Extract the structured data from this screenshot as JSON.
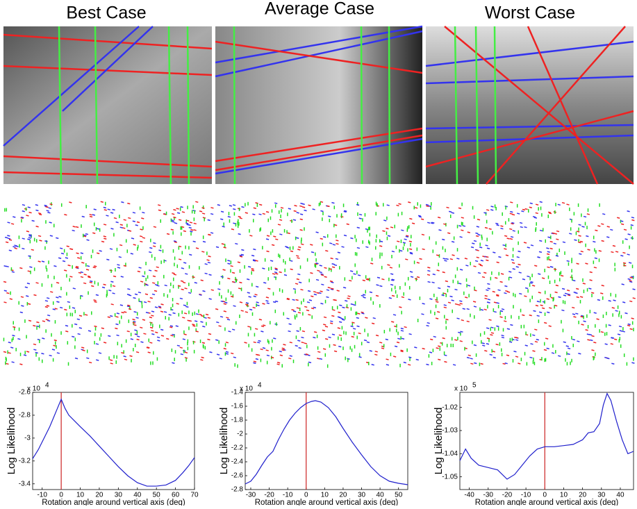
{
  "chart_data": [
    {
      "type": "line",
      "title": "Best Case",
      "xlabel": "Rotation angle around vertical axis (deg)",
      "ylabel": "Log Likelihood",
      "y_scale_base": "x 10",
      "y_scale_exponent": "4",
      "xlim": [
        -15,
        70
      ],
      "xticks": [
        -10,
        0,
        10,
        20,
        30,
        40,
        50,
        60,
        70
      ],
      "ylim": [
        -3.45,
        -2.6
      ],
      "yticks": [
        -3.4,
        -3.2,
        -3,
        -2.8,
        -2.6
      ],
      "vline": 0,
      "vline_color": "#cc2222",
      "series": [
        {
          "color": "#1f1fcc",
          "x": [
            -15,
            -12,
            -9,
            -6,
            -4,
            -2,
            -1,
            0,
            1,
            2,
            4,
            7,
            10,
            15,
            20,
            25,
            30,
            35,
            40,
            45,
            50,
            55,
            60,
            64,
            67,
            70
          ],
          "values": [
            -3.18,
            -3.1,
            -3.0,
            -2.9,
            -2.82,
            -2.74,
            -2.7,
            -2.66,
            -2.7,
            -2.74,
            -2.8,
            -2.85,
            -2.9,
            -2.98,
            -3.07,
            -3.16,
            -3.25,
            -3.33,
            -3.39,
            -3.42,
            -3.42,
            -3.41,
            -3.37,
            -3.3,
            -3.24,
            -3.17
          ]
        }
      ]
    },
    {
      "type": "line",
      "title": "Average Case",
      "xlabel": "Rotation angle around vertical axis (deg)",
      "ylabel": "Log Likelihood",
      "y_scale_base": "x 10",
      "y_scale_exponent": "4",
      "xlim": [
        -33,
        55
      ],
      "xticks": [
        -30,
        -20,
        -10,
        0,
        10,
        20,
        30,
        40,
        50
      ],
      "ylim": [
        -2.8,
        -1.4
      ],
      "yticks": [
        -2.8,
        -2.6,
        -2.4,
        -2.2,
        -2,
        -1.8,
        -1.6,
        -1.4
      ],
      "vline": 0,
      "vline_color": "#cc2222",
      "series": [
        {
          "color": "#1f1fcc",
          "x": [
            -33,
            -30,
            -27,
            -24,
            -21,
            -18,
            -15,
            -12,
            -9,
            -6,
            -3,
            0,
            3,
            5,
            8,
            12,
            16,
            20,
            25,
            30,
            35,
            40,
            45,
            50,
            55
          ],
          "values": [
            -2.72,
            -2.68,
            -2.58,
            -2.45,
            -2.33,
            -2.25,
            -2.08,
            -1.93,
            -1.8,
            -1.7,
            -1.62,
            -1.56,
            -1.53,
            -1.52,
            -1.54,
            -1.62,
            -1.75,
            -1.92,
            -2.12,
            -2.3,
            -2.47,
            -2.6,
            -2.68,
            -2.71,
            -2.73
          ]
        }
      ]
    },
    {
      "type": "line",
      "title": "Worst Case",
      "xlabel": "Rotation angle around vertical axis (deg)",
      "ylabel": "Log Likelihood",
      "y_scale_base": "x 10",
      "y_scale_exponent": "5",
      "xlim": [
        -45,
        47
      ],
      "xticks": [
        -40,
        -30,
        -20,
        -10,
        0,
        10,
        20,
        30,
        40
      ],
      "ylim": [
        -1.0555,
        -1.0135
      ],
      "yticks": [
        -1.05,
        -1.04,
        -1.03,
        -1.02
      ],
      "vline": 0,
      "vline_color": "#cc2222",
      "series": [
        {
          "color": "#1f1fcc",
          "x": [
            -45,
            -42,
            -39,
            -35,
            -30,
            -25,
            -20,
            -16,
            -12,
            -8,
            -4,
            0,
            5,
            10,
            15,
            20,
            23,
            26,
            29,
            31,
            33,
            35,
            38,
            41,
            44,
            47
          ],
          "values": [
            -1.043,
            -1.038,
            -1.042,
            -1.045,
            -1.046,
            -1.047,
            -1.051,
            -1.049,
            -1.045,
            -1.041,
            -1.038,
            -1.037,
            -1.037,
            -1.0365,
            -1.036,
            -1.034,
            -1.031,
            -1.0305,
            -1.027,
            -1.019,
            -1.014,
            -1.017,
            -1.026,
            -1.034,
            -1.04,
            -1.039
          ]
        }
      ]
    }
  ]
}
